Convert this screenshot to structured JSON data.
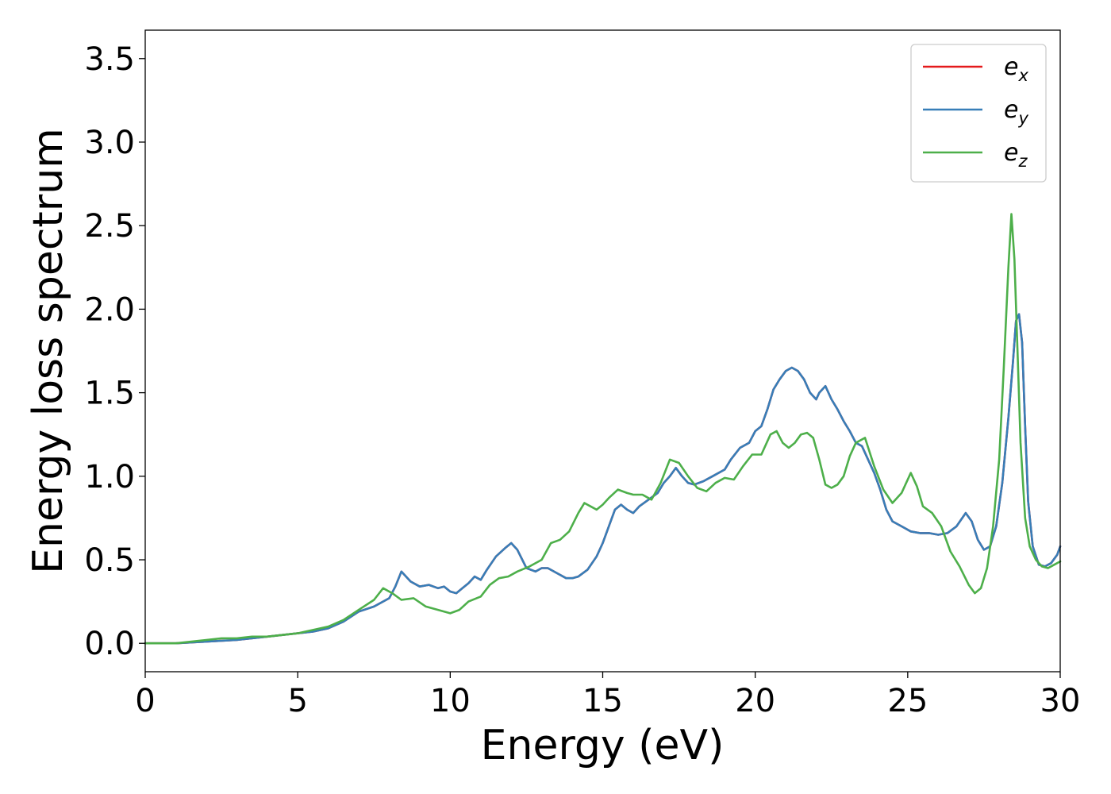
{
  "chart_data": {
    "type": "line",
    "xlabel": "Energy (eV)",
    "ylabel": "Energy loss spectrum",
    "xlim": [
      0,
      30
    ],
    "ylim": [
      -0.17,
      3.67
    ],
    "xticks": [
      "0",
      "5",
      "10",
      "15",
      "20",
      "25",
      "30"
    ],
    "yticks": [
      "0.0",
      "0.5",
      "1.0",
      "1.5",
      "2.0",
      "2.5",
      "3.0",
      "3.5"
    ],
    "grid": false,
    "legend_position": "top-right",
    "legend": [
      {
        "symbol": "e",
        "subscript": "x",
        "color": "#e41a1c"
      },
      {
        "symbol": "e",
        "subscript": "y",
        "color": "#377eb8"
      },
      {
        "symbol": "e",
        "subscript": "z",
        "color": "#4daf4a"
      }
    ],
    "series": [
      {
        "name": "e_x",
        "color": "#e41a1c",
        "x": [
          0,
          1,
          2,
          3,
          4,
          5,
          5.5,
          6,
          6.5,
          7,
          7.5,
          8,
          8.2,
          8.4,
          8.7,
          9,
          9.3,
          9.6,
          9.8,
          10,
          10.2,
          10.4,
          10.6,
          10.8,
          11,
          11.2,
          11.5,
          11.8,
          12,
          12.2,
          12.5,
          12.8,
          13,
          13.2,
          13.5,
          13.8,
          14,
          14.2,
          14.5,
          14.8,
          15,
          15.2,
          15.4,
          15.6,
          15.8,
          16,
          16.2,
          16.5,
          16.8,
          17,
          17.2,
          17.4,
          17.6,
          17.8,
          18,
          18.3,
          18.6,
          19,
          19.2,
          19.5,
          19.8,
          20,
          20.2,
          20.4,
          20.6,
          20.8,
          21,
          21.2,
          21.4,
          21.6,
          21.8,
          22,
          22.1,
          22.3,
          22.5,
          22.7,
          22.9,
          23.1,
          23.3,
          23.5,
          23.7,
          23.9,
          24.1,
          24.3,
          24.5,
          24.8,
          25.1,
          25.4,
          25.7,
          26,
          26.3,
          26.6,
          26.9,
          27.1,
          27.3,
          27.5,
          27.7,
          27.9,
          28.1,
          28.3,
          28.45,
          28.55,
          28.65,
          28.75,
          28.85,
          28.95,
          29.1,
          29.3,
          29.5,
          29.7,
          29.9,
          30
        ],
        "y": [
          0,
          0,
          0.01,
          0.02,
          0.04,
          0.06,
          0.07,
          0.09,
          0.13,
          0.19,
          0.22,
          0.27,
          0.34,
          0.43,
          0.37,
          0.34,
          0.35,
          0.33,
          0.34,
          0.31,
          0.3,
          0.33,
          0.36,
          0.4,
          0.38,
          0.44,
          0.52,
          0.57,
          0.6,
          0.56,
          0.45,
          0.43,
          0.45,
          0.45,
          0.42,
          0.39,
          0.39,
          0.4,
          0.44,
          0.52,
          0.6,
          0.7,
          0.8,
          0.83,
          0.8,
          0.78,
          0.82,
          0.86,
          0.9,
          0.96,
          1.0,
          1.05,
          1.0,
          0.96,
          0.95,
          0.97,
          1.0,
          1.04,
          1.1,
          1.17,
          1.2,
          1.27,
          1.3,
          1.4,
          1.52,
          1.58,
          1.63,
          1.65,
          1.63,
          1.58,
          1.5,
          1.46,
          1.5,
          1.54,
          1.46,
          1.4,
          1.33,
          1.27,
          1.2,
          1.18,
          1.1,
          1.02,
          0.92,
          0.8,
          0.73,
          0.7,
          0.67,
          0.66,
          0.66,
          0.65,
          0.66,
          0.7,
          0.78,
          0.73,
          0.62,
          0.56,
          0.58,
          0.7,
          0.96,
          1.35,
          1.68,
          1.93,
          1.97,
          1.8,
          1.3,
          0.85,
          0.58,
          0.47,
          0.46,
          0.48,
          0.53,
          0.58
        ]
      },
      {
        "name": "e_y",
        "color": "#377eb8",
        "x": [
          0,
          1,
          2,
          3,
          4,
          5,
          5.5,
          6,
          6.5,
          7,
          7.5,
          8,
          8.2,
          8.4,
          8.7,
          9,
          9.3,
          9.6,
          9.8,
          10,
          10.2,
          10.4,
          10.6,
          10.8,
          11,
          11.2,
          11.5,
          11.8,
          12,
          12.2,
          12.5,
          12.8,
          13,
          13.2,
          13.5,
          13.8,
          14,
          14.2,
          14.5,
          14.8,
          15,
          15.2,
          15.4,
          15.6,
          15.8,
          16,
          16.2,
          16.5,
          16.8,
          17,
          17.2,
          17.4,
          17.6,
          17.8,
          18,
          18.3,
          18.6,
          19,
          19.2,
          19.5,
          19.8,
          20,
          20.2,
          20.4,
          20.6,
          20.8,
          21,
          21.2,
          21.4,
          21.6,
          21.8,
          22,
          22.1,
          22.3,
          22.5,
          22.7,
          22.9,
          23.1,
          23.3,
          23.5,
          23.7,
          23.9,
          24.1,
          24.3,
          24.5,
          24.8,
          25.1,
          25.4,
          25.7,
          26,
          26.3,
          26.6,
          26.9,
          27.1,
          27.3,
          27.5,
          27.7,
          27.9,
          28.1,
          28.3,
          28.45,
          28.55,
          28.65,
          28.75,
          28.85,
          28.95,
          29.1,
          29.3,
          29.5,
          29.7,
          29.9,
          30
        ],
        "y": [
          0,
          0,
          0.01,
          0.02,
          0.04,
          0.06,
          0.07,
          0.09,
          0.13,
          0.19,
          0.22,
          0.27,
          0.34,
          0.43,
          0.37,
          0.34,
          0.35,
          0.33,
          0.34,
          0.31,
          0.3,
          0.33,
          0.36,
          0.4,
          0.38,
          0.44,
          0.52,
          0.57,
          0.6,
          0.56,
          0.45,
          0.43,
          0.45,
          0.45,
          0.42,
          0.39,
          0.39,
          0.4,
          0.44,
          0.52,
          0.6,
          0.7,
          0.8,
          0.83,
          0.8,
          0.78,
          0.82,
          0.86,
          0.9,
          0.96,
          1.0,
          1.05,
          1.0,
          0.96,
          0.95,
          0.97,
          1.0,
          1.04,
          1.1,
          1.17,
          1.2,
          1.27,
          1.3,
          1.4,
          1.52,
          1.58,
          1.63,
          1.65,
          1.63,
          1.58,
          1.5,
          1.46,
          1.5,
          1.54,
          1.46,
          1.4,
          1.33,
          1.27,
          1.2,
          1.18,
          1.1,
          1.02,
          0.92,
          0.8,
          0.73,
          0.7,
          0.67,
          0.66,
          0.66,
          0.65,
          0.66,
          0.7,
          0.78,
          0.73,
          0.62,
          0.56,
          0.58,
          0.7,
          0.96,
          1.35,
          1.68,
          1.93,
          1.97,
          1.8,
          1.3,
          0.85,
          0.58,
          0.47,
          0.46,
          0.48,
          0.53,
          0.58
        ]
      },
      {
        "name": "e_z",
        "color": "#4daf4a",
        "x": [
          0,
          1,
          2,
          2.5,
          3,
          3.5,
          4,
          4.5,
          5,
          5.5,
          6,
          6.5,
          7,
          7.5,
          7.8,
          8.1,
          8.4,
          8.8,
          9.2,
          9.6,
          10,
          10.3,
          10.6,
          11,
          11.3,
          11.6,
          11.9,
          12.2,
          12.6,
          13,
          13.3,
          13.6,
          13.9,
          14.2,
          14.4,
          14.6,
          14.8,
          15,
          15.2,
          15.5,
          15.8,
          16,
          16.3,
          16.6,
          16.9,
          17.2,
          17.5,
          17.8,
          18.1,
          18.4,
          18.7,
          19,
          19.3,
          19.6,
          19.9,
          20.2,
          20.5,
          20.7,
          20.9,
          21.1,
          21.3,
          21.5,
          21.7,
          21.9,
          22.1,
          22.3,
          22.5,
          22.7,
          22.9,
          23.1,
          23.3,
          23.6,
          23.9,
          24.2,
          24.5,
          24.8,
          25.1,
          25.3,
          25.5,
          25.8,
          26.1,
          26.4,
          26.7,
          27,
          27.2,
          27.4,
          27.6,
          27.8,
          28,
          28.15,
          28.3,
          28.4,
          28.5,
          28.6,
          28.7,
          28.85,
          29,
          29.2,
          29.4,
          29.6,
          29.8,
          30
        ],
        "y": [
          0,
          0,
          0.02,
          0.03,
          0.03,
          0.04,
          0.04,
          0.05,
          0.06,
          0.08,
          0.1,
          0.14,
          0.2,
          0.26,
          0.33,
          0.3,
          0.26,
          0.27,
          0.22,
          0.2,
          0.18,
          0.2,
          0.25,
          0.28,
          0.35,
          0.39,
          0.4,
          0.43,
          0.46,
          0.5,
          0.6,
          0.62,
          0.67,
          0.78,
          0.84,
          0.82,
          0.8,
          0.83,
          0.87,
          0.92,
          0.9,
          0.89,
          0.89,
          0.86,
          0.96,
          1.1,
          1.08,
          1.0,
          0.93,
          0.91,
          0.96,
          0.99,
          0.98,
          1.06,
          1.13,
          1.13,
          1.25,
          1.27,
          1.2,
          1.17,
          1.2,
          1.25,
          1.26,
          1.23,
          1.1,
          0.95,
          0.93,
          0.95,
          1.0,
          1.12,
          1.2,
          1.23,
          1.06,
          0.92,
          0.84,
          0.9,
          1.02,
          0.94,
          0.82,
          0.78,
          0.7,
          0.55,
          0.46,
          0.35,
          0.3,
          0.33,
          0.45,
          0.7,
          1.1,
          1.65,
          2.25,
          2.57,
          2.3,
          1.75,
          1.2,
          0.75,
          0.58,
          0.5,
          0.46,
          0.45,
          0.47,
          0.49
        ]
      }
    ]
  }
}
